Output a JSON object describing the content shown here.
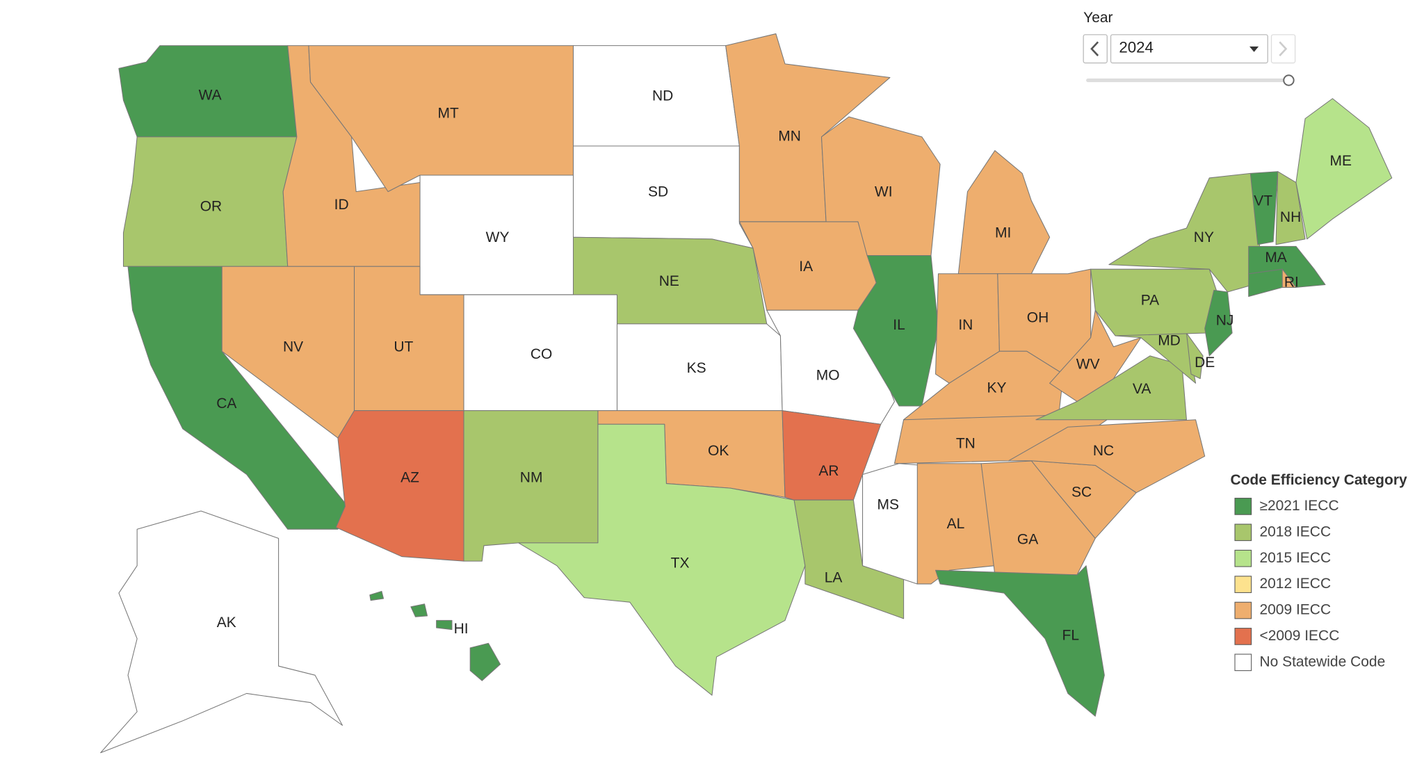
{
  "year_control": {
    "label": "Year",
    "value": "2024"
  },
  "legend": {
    "title": "Code Efficiency Category",
    "items": [
      {
        "label": "≥2021 IECC",
        "color": "#4a9a52"
      },
      {
        "label": "2018 IECC",
        "color": "#a8c66c"
      },
      {
        "label": "2015 IECC",
        "color": "#b6e38b"
      },
      {
        "label": "2012 IECC",
        "color": "#fde28e"
      },
      {
        "label": "2009 IECC",
        "color": "#eeae6e"
      },
      {
        "label": "<2009 IECC",
        "color": "#e3714e"
      },
      {
        "label": "No Statewide Code",
        "color": "#ffffff"
      }
    ]
  },
  "states": [
    {
      "label": "WA",
      "category": "≥2021 IECC"
    },
    {
      "label": "OR",
      "category": "2018 IECC"
    },
    {
      "label": "CA",
      "category": "≥2021 IECC"
    },
    {
      "label": "ID",
      "category": "2009 IECC"
    },
    {
      "label": "NV",
      "category": "2009 IECC"
    },
    {
      "label": "MT",
      "category": "2009 IECC"
    },
    {
      "label": "WY",
      "category": "No Statewide Code"
    },
    {
      "label": "UT",
      "category": "2009 IECC"
    },
    {
      "label": "AZ",
      "category": "<2009 IECC"
    },
    {
      "label": "CO",
      "category": "No Statewide Code"
    },
    {
      "label": "NM",
      "category": "2018 IECC"
    },
    {
      "label": "ND",
      "category": "No Statewide Code"
    },
    {
      "label": "SD",
      "category": "No Statewide Code"
    },
    {
      "label": "NE",
      "category": "2018 IECC"
    },
    {
      "label": "KS",
      "category": "No Statewide Code"
    },
    {
      "label": "OK",
      "category": "2009 IECC"
    },
    {
      "label": "TX",
      "category": "2015 IECC"
    },
    {
      "label": "MN",
      "category": "2009 IECC"
    },
    {
      "label": "IA",
      "category": "2009 IECC"
    },
    {
      "label": "MO",
      "category": "No Statewide Code"
    },
    {
      "label": "AR",
      "category": "<2009 IECC"
    },
    {
      "label": "LA",
      "category": "2018 IECC"
    },
    {
      "label": "WI",
      "category": "2009 IECC"
    },
    {
      "label": "IL",
      "category": "≥2021 IECC"
    },
    {
      "label": "MS",
      "category": "No Statewide Code"
    },
    {
      "label": "MI",
      "category": "2009 IECC"
    },
    {
      "label": "IN",
      "category": "2009 IECC"
    },
    {
      "label": "OH",
      "category": "2009 IECC"
    },
    {
      "label": "KY",
      "category": "2009 IECC"
    },
    {
      "label": "TN",
      "category": "2009 IECC"
    },
    {
      "label": "AL",
      "category": "2009 IECC"
    },
    {
      "label": "GA",
      "category": "2009 IECC"
    },
    {
      "label": "FL",
      "category": "≥2021 IECC"
    },
    {
      "label": "SC",
      "category": "2009 IECC"
    },
    {
      "label": "NC",
      "category": "2009 IECC"
    },
    {
      "label": "VA",
      "category": "2018 IECC"
    },
    {
      "label": "WV",
      "category": "2009 IECC"
    },
    {
      "label": "MD",
      "category": "2018 IECC"
    },
    {
      "label": "DE",
      "category": "2018 IECC"
    },
    {
      "label": "PA",
      "category": "2018 IECC"
    },
    {
      "label": "NJ",
      "category": "≥2021 IECC"
    },
    {
      "label": "NY",
      "category": "2018 IECC"
    },
    {
      "label": null,
      "category": "≥2021 IECC"
    },
    {
      "label": "RI",
      "category": "2009 IECC"
    },
    {
      "label": "MA",
      "category": "≥2021 IECC"
    },
    {
      "label": "VT",
      "category": "≥2021 IECC"
    },
    {
      "label": "NH",
      "category": "2018 IECC"
    },
    {
      "label": "ME",
      "category": "2015 IECC"
    },
    {
      "label": "AK",
      "category": "No Statewide Code"
    },
    {
      "label": "HI",
      "category": "≥2021 IECC"
    }
  ]
}
